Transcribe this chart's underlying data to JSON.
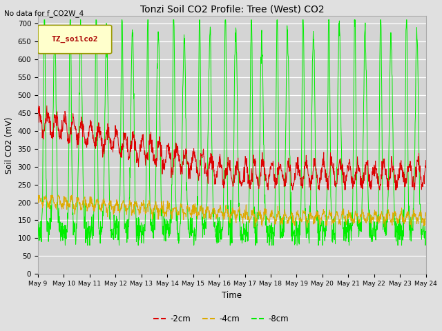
{
  "title": "Tonzi Soil CO2 Profile: Tree (West) CO2",
  "no_data_text": "No data for f_CO2W_4",
  "ylabel": "Soil CO2 (mV)",
  "xlabel": "Time",
  "legend_label": "TZ_soilco2",
  "ylim": [
    0,
    720
  ],
  "yticks": [
    0,
    50,
    100,
    150,
    200,
    250,
    300,
    350,
    400,
    450,
    500,
    550,
    600,
    650,
    700
  ],
  "x_start_day": 9,
  "x_end_day": 24,
  "xtick_days": [
    9,
    10,
    11,
    12,
    13,
    14,
    15,
    16,
    17,
    18,
    19,
    20,
    21,
    22,
    23,
    24
  ],
  "line_2cm_color": "#dd0000",
  "line_4cm_color": "#ddaa00",
  "line_8cm_color": "#00ee00",
  "legend_2cm": "-2cm",
  "legend_4cm": "-4cm",
  "legend_8cm": "-8cm",
  "bg_color": "#e0e0e0",
  "plot_bg_color": "#d4d4d4",
  "grid_color": "#ffffff",
  "legend_box_color": "#ffffcc",
  "legend_box_edge": "#999900"
}
